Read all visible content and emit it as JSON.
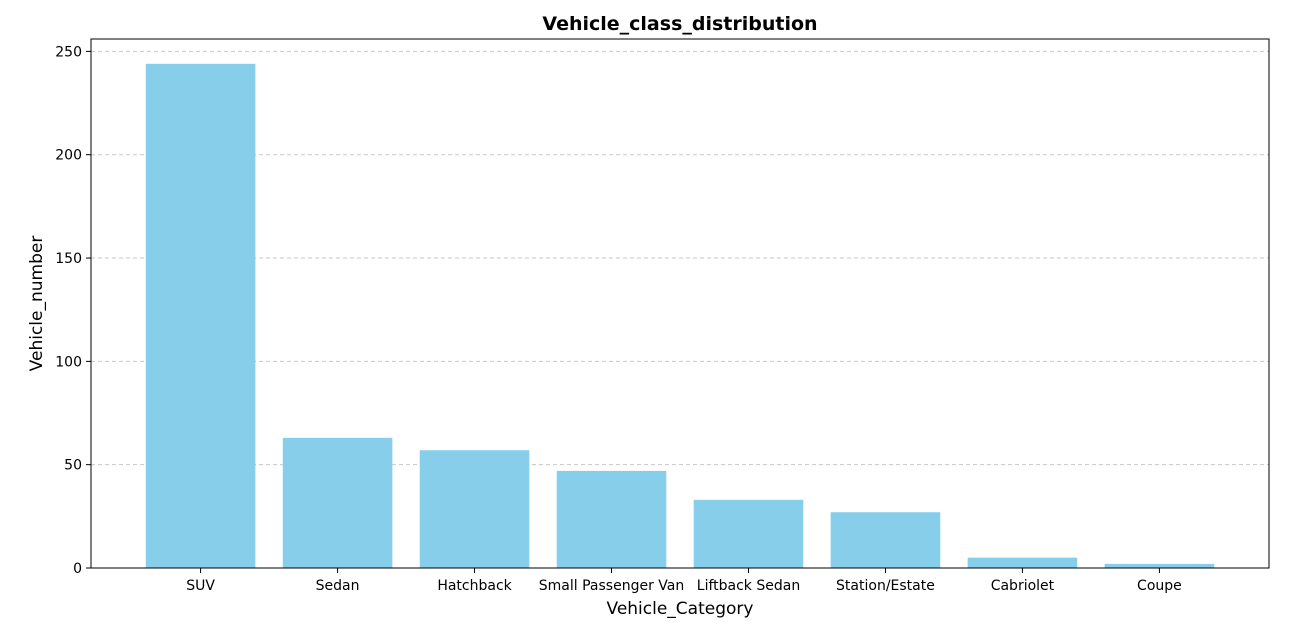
{
  "chart_data": {
    "type": "bar",
    "title": "Vehicle_class_distribution",
    "xlabel": "Vehicle_Category",
    "ylabel": "Vehicle_number",
    "categories": [
      "SUV",
      "Sedan",
      "Hatchback",
      "Small Passenger Van",
      "Liftback Sedan",
      "Station/Estate",
      "Cabriolet",
      "Coupe"
    ],
    "values": [
      244,
      63,
      57,
      47,
      33,
      27,
      5,
      2
    ],
    "ylim": [
      0,
      256
    ],
    "yticks": [
      0,
      50,
      100,
      150,
      200,
      250
    ],
    "grid": "y-dashed",
    "bar_color": "#87ceeb"
  }
}
